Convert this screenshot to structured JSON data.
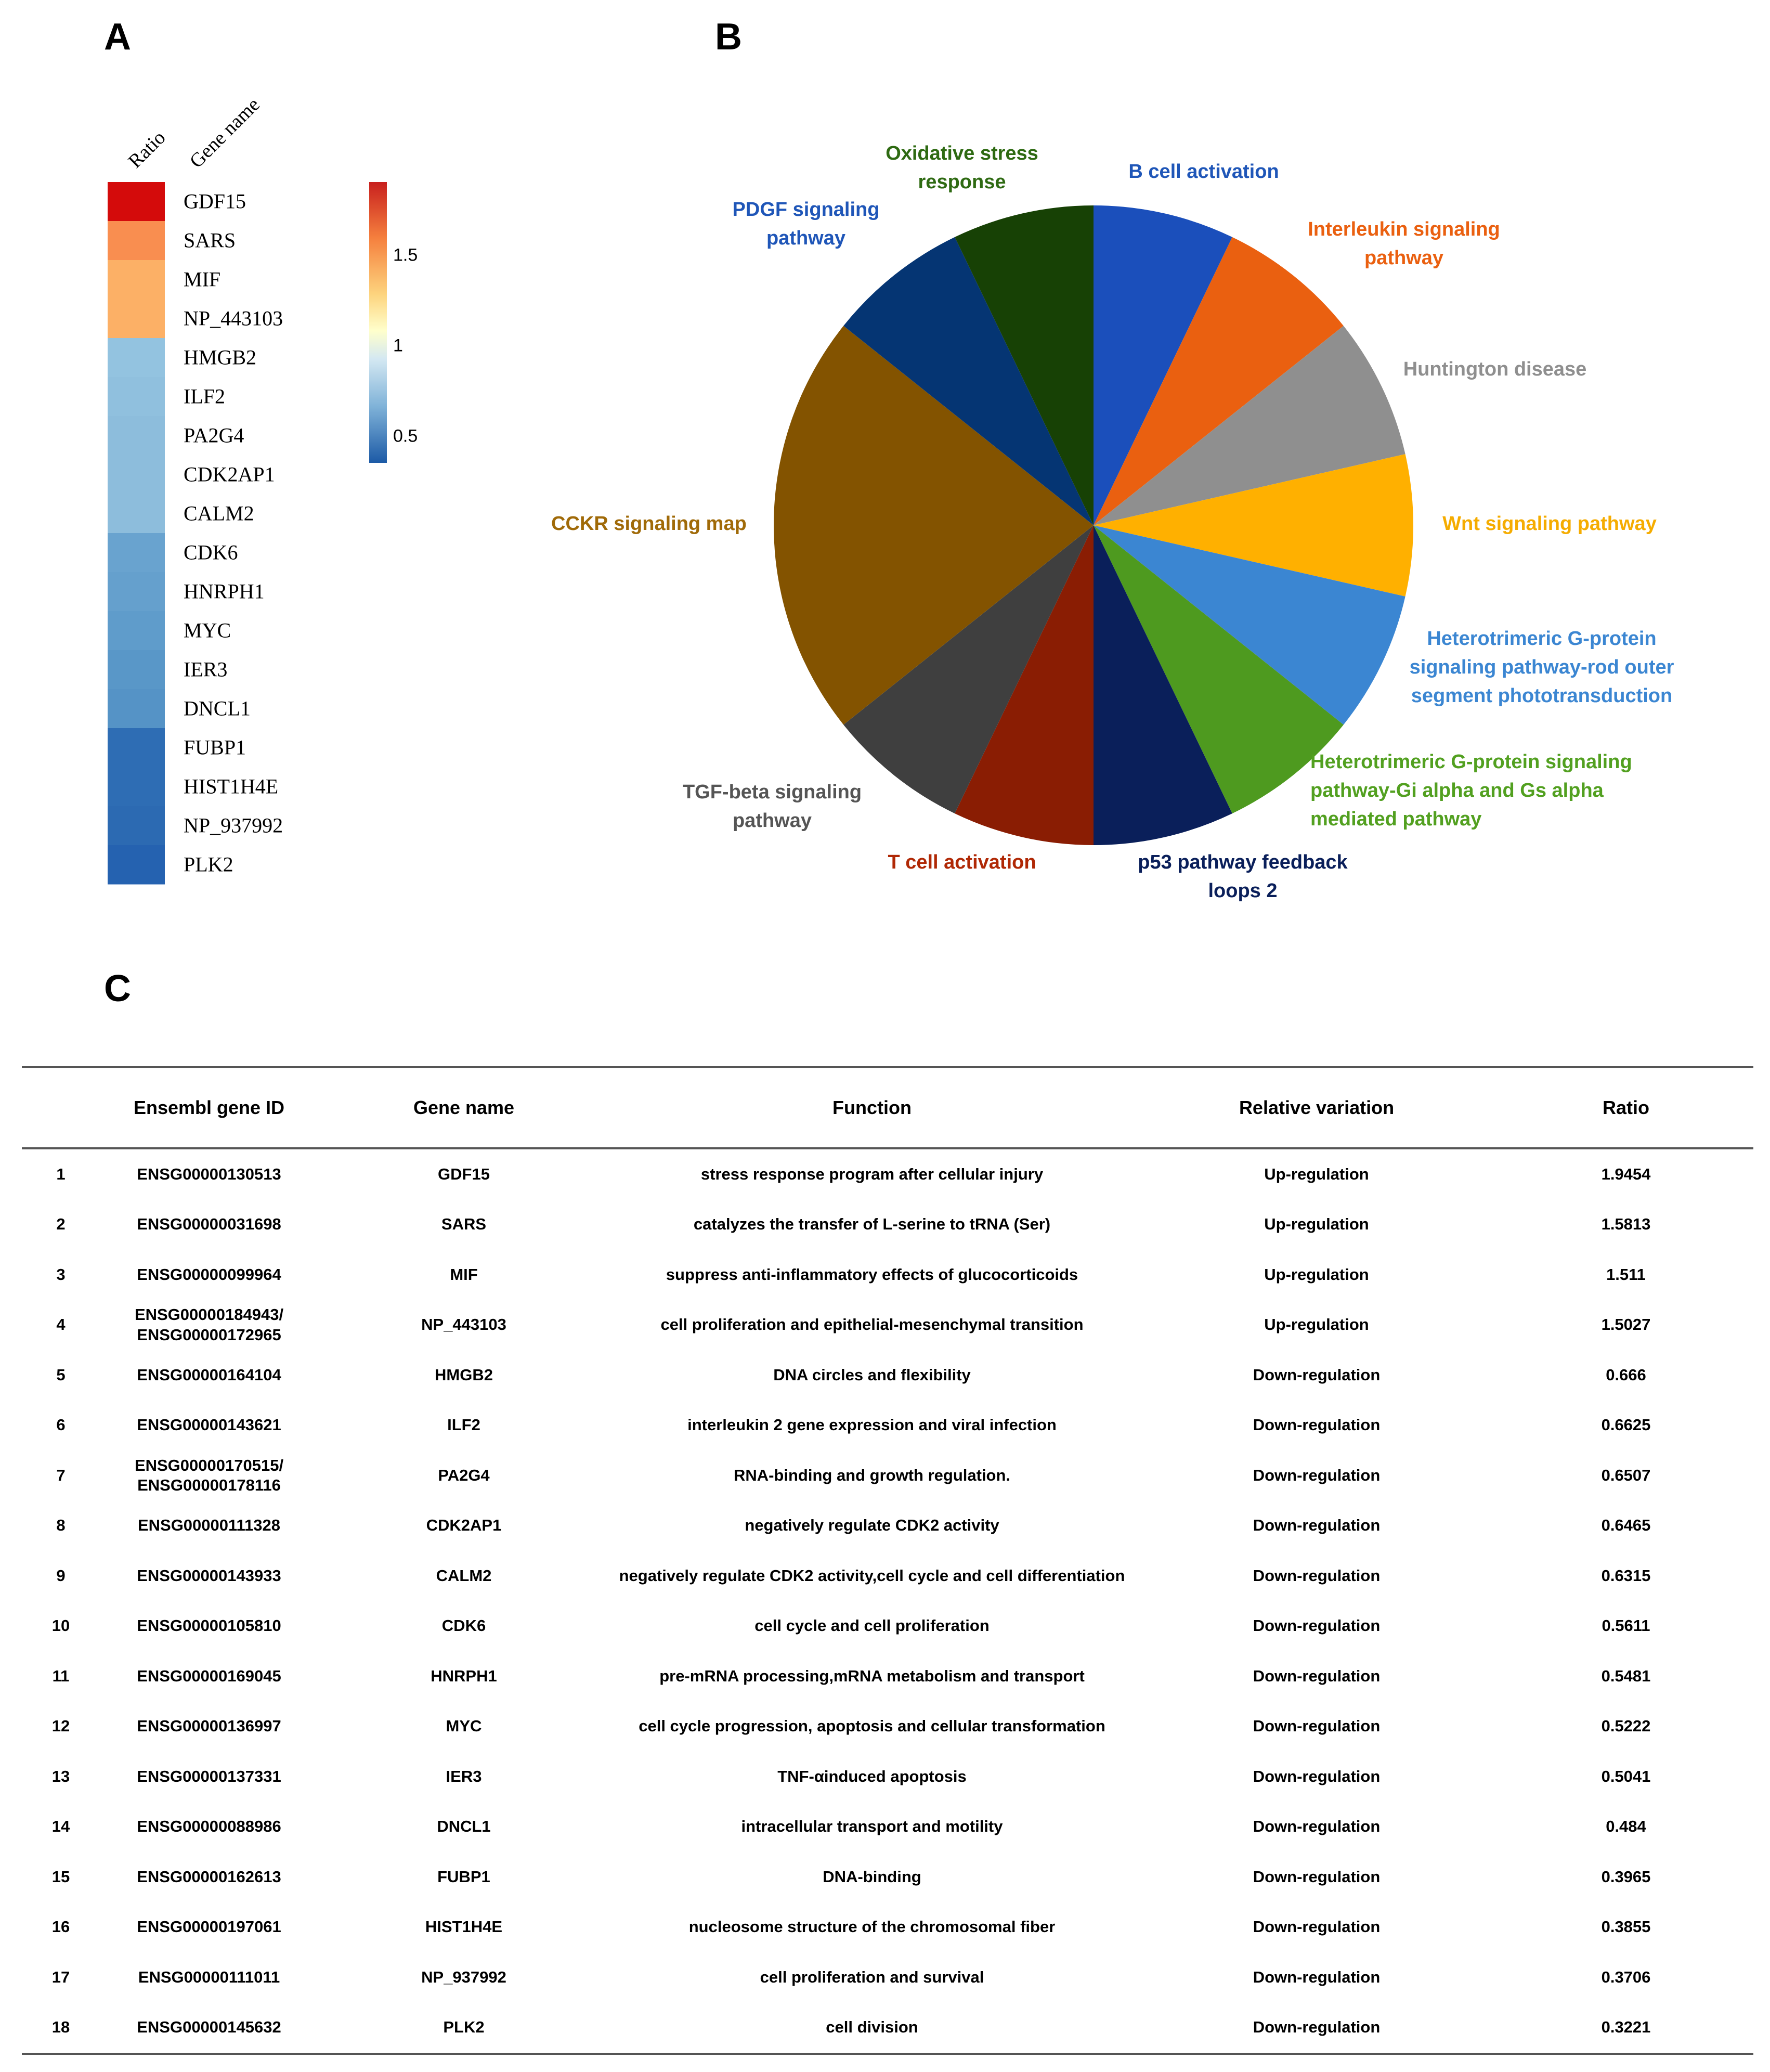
{
  "panels": {
    "a": "A",
    "b": "B",
    "c": "C"
  },
  "chart_data": [
    {
      "type": "heatmap",
      "column_headers": [
        "Ratio",
        "Gene name"
      ],
      "categories": [
        "GDF15",
        "SARS",
        "MIF",
        "NP_443103",
        "HMGB2",
        "ILF2",
        "PA2G4",
        "CDK2AP1",
        "CALM2",
        "CDK6",
        "HNRPH1",
        "MYC",
        "IER3",
        "DNCL1",
        "FUBP1",
        "HIST1H4E",
        "NP_937992",
        "PLK2"
      ],
      "values": [
        1.9454,
        1.5813,
        1.511,
        1.5027,
        0.666,
        0.6625,
        0.6507,
        0.6465,
        0.6315,
        0.5611,
        0.5481,
        0.5222,
        0.5041,
        0.484,
        0.3965,
        0.3855,
        0.3706,
        0.3221
      ],
      "colors": [
        "#d40b0b",
        "#f98e50",
        "#fcb066",
        "#fcb066",
        "#93c3e0",
        "#90c0de",
        "#8dbddc",
        "#8dbddc",
        "#8dbddc",
        "#69a3cf",
        "#65a0cd",
        "#5f9ccb",
        "#5997c8",
        "#5593c6",
        "#2e6db4",
        "#2e6db4",
        "#2c6ab2",
        "#2562b0"
      ],
      "colorbar": {
        "ticks": [
          "1.5",
          "1",
          "0.5"
        ],
        "tick_values": [
          1.5,
          1.0,
          0.5
        ],
        "range": [
          0.35,
          1.9
        ]
      }
    },
    {
      "type": "pie",
      "slices": [
        {
          "label": "B cell activation",
          "value": 1,
          "color": "#1b4fbb"
        },
        {
          "label": "Interleukin signaling pathway",
          "value": 1,
          "color": "#ea6010"
        },
        {
          "label": "Huntington disease",
          "value": 1,
          "color": "#8f8f8f"
        },
        {
          "label": "Wnt signaling pathway",
          "value": 1,
          "color": "#ffb000"
        },
        {
          "label": "Heterotrimeric G-protein signaling pathway-rod outer segment phototransduction",
          "value": 1,
          "color": "#3b86d2"
        },
        {
          "label": "Heterotrimeric G-protein signaling pathway-Gi alpha and Gs alpha mediated pathway",
          "value": 1,
          "color": "#4e9a1f"
        },
        {
          "label": "p53 pathway feedback loops 2",
          "value": 1,
          "color": "#0a1f5a"
        },
        {
          "label": "T cell activation",
          "value": 1,
          "color": "#8a1d03"
        },
        {
          "label": "TGF-beta signaling pathway",
          "value": 1,
          "color": "#3f3f3f"
        },
        {
          "label": "CCKR signaling map",
          "value": 3,
          "color": "#835300"
        },
        {
          "label": "PDGF signaling pathway",
          "value": 1,
          "color": "#053573"
        },
        {
          "label": "Oxidative stress response",
          "value": 1,
          "color": "#174105"
        }
      ],
      "label_lines": [
        {
          "lines": [
            "B cell activation"
          ],
          "color": "#1f56b8"
        },
        {
          "lines": [
            "Interleukin signaling",
            "pathway"
          ],
          "color": "#ea6010"
        },
        {
          "lines": [
            "Huntington disease"
          ],
          "color": "#8f8f8f"
        },
        {
          "lines": [
            "Wnt signaling pathway"
          ],
          "color": "#f5ac00"
        },
        {
          "lines": [
            "Heterotrimeric G-protein",
            "signaling pathway-rod outer",
            "segment phototransduction"
          ],
          "color": "#3b86d2"
        },
        {
          "lines": [
            "Heterotrimeric G-protein signaling",
            "pathway-Gi alpha and Gs alpha",
            "mediated pathway"
          ],
          "color": "#52a020"
        },
        {
          "lines": [
            "p53 pathway feedback",
            "loops 2"
          ],
          "color": "#0a1f5a"
        },
        {
          "lines": [
            "T cell activation"
          ],
          "color": "#b02805"
        },
        {
          "lines": [
            "TGF-beta signaling",
            "pathway"
          ],
          "color": "#555555"
        },
        {
          "lines": [
            "CCKR signaling map"
          ],
          "color": "#a06a08"
        },
        {
          "lines": [
            "PDGF signaling",
            "pathway"
          ],
          "color": "#1f56b8"
        },
        {
          "lines": [
            "Oxidative stress",
            "response"
          ],
          "color": "#2e6a12"
        }
      ]
    }
  ],
  "table": {
    "headers": [
      "",
      "Ensembl gene ID",
      "Gene name",
      "Function",
      "Relative variation",
      "Ratio"
    ],
    "rows": [
      [
        "1",
        "ENSG00000130513",
        "GDF15",
        "stress response program after cellular injury",
        "Up-regulation",
        "1.9454"
      ],
      [
        "2",
        "ENSG00000031698",
        "SARS",
        "catalyzes the transfer of L-serine to tRNA (Ser)",
        "Up-regulation",
        "1.5813"
      ],
      [
        "3",
        "ENSG00000099964",
        "MIF",
        "suppress anti-inflammatory effects of glucocorticoids",
        "Up-regulation",
        "1.511"
      ],
      [
        "4",
        "ENSG00000184943/\nENSG00000172965",
        "NP_443103",
        "cell proliferation and epithelial-mesenchymal transition",
        "Up-regulation",
        "1.5027"
      ],
      [
        "5",
        "ENSG00000164104",
        "HMGB2",
        "DNA circles and flexibility",
        "Down-regulation",
        "0.666"
      ],
      [
        "6",
        "ENSG00000143621",
        "ILF2",
        "interleukin 2 gene expression and viral infection",
        "Down-regulation",
        "0.6625"
      ],
      [
        "7",
        "ENSG00000170515/\nENSG00000178116",
        "PA2G4",
        "RNA-binding and growth regulation.",
        "Down-regulation",
        "0.6507"
      ],
      [
        "8",
        "ENSG00000111328",
        "CDK2AP1",
        "negatively regulate CDK2 activity",
        "Down-regulation",
        "0.6465"
      ],
      [
        "9",
        "ENSG00000143933",
        "CALM2",
        "negatively regulate CDK2 activity,cell cycle and cell differentiation",
        "Down-regulation",
        "0.6315"
      ],
      [
        "10",
        "ENSG00000105810",
        "CDK6",
        "cell cycle and cell proliferation",
        "Down-regulation",
        "0.5611"
      ],
      [
        "11",
        "ENSG00000169045",
        "HNRPH1",
        "pre-mRNA processing,mRNA metabolism and transport",
        "Down-regulation",
        "0.5481"
      ],
      [
        "12",
        "ENSG00000136997",
        "MYC",
        "cell cycle progression, apoptosis and cellular transformation",
        "Down-regulation",
        "0.5222"
      ],
      [
        "13",
        "ENSG00000137331",
        "IER3",
        "TNF-αinduced apoptosis",
        "Down-regulation",
        "0.5041"
      ],
      [
        "14",
        "ENSG00000088986",
        "DNCL1",
        "intracellular transport and motility",
        "Down-regulation",
        "0.484"
      ],
      [
        "15",
        "ENSG00000162613",
        "FUBP1",
        "DNA-binding",
        "Down-regulation",
        "0.3965"
      ],
      [
        "16",
        "ENSG00000197061",
        "HIST1H4E",
        "nucleosome structure of the chromosomal fiber",
        "Down-regulation",
        "0.3855"
      ],
      [
        "17",
        "ENSG00000111011",
        "NP_937992",
        "cell proliferation and survival",
        "Down-regulation",
        "0.3706"
      ],
      [
        "18",
        "ENSG00000145632",
        "PLK2",
        "cell division",
        "Down-regulation",
        "0.3221"
      ]
    ]
  }
}
